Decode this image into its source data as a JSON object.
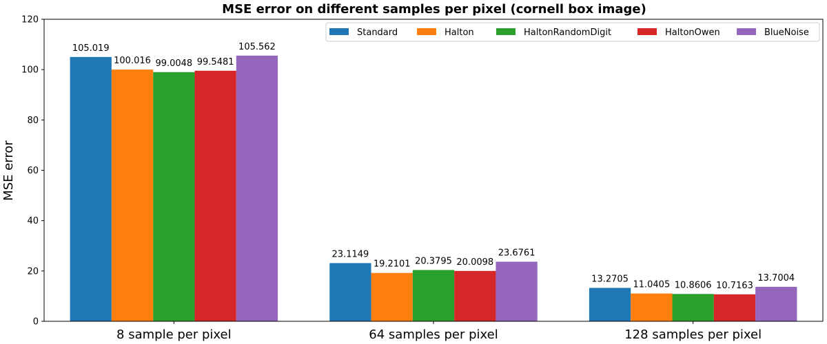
{
  "chart_data": {
    "type": "bar",
    "title": "MSE error on different samples per pixel (cornell box image)",
    "xlabel": "",
    "ylabel": "MSE error",
    "ylim": [
      0,
      120
    ],
    "yticks": [
      0,
      20,
      40,
      60,
      80,
      100,
      120
    ],
    "grid": false,
    "legend_position": "top-right",
    "categories": [
      "8 sample per pixel",
      "64 samples per pixel",
      "128 samples per pixel"
    ],
    "series": [
      {
        "name": "Standard",
        "color": "#1f77b4",
        "values": [
          105.019,
          23.1149,
          13.2705
        ],
        "labels": [
          "105.019",
          "23.1149",
          "13.2705"
        ]
      },
      {
        "name": "Halton",
        "color": "#ff7f0e",
        "values": [
          100.016,
          19.2101,
          11.0405
        ],
        "labels": [
          "100.016",
          "19.2101",
          "11.0405"
        ]
      },
      {
        "name": "HaltonRandomDigit",
        "color": "#2ca02c",
        "values": [
          99.0048,
          20.3795,
          10.8606
        ],
        "labels": [
          "99.0048",
          "20.3795",
          "10.8606"
        ]
      },
      {
        "name": "HaltonOwen",
        "color": "#d62728",
        "values": [
          99.5481,
          20.0098,
          10.7163
        ],
        "labels": [
          "99.5481",
          "20.0098",
          "10.7163"
        ]
      },
      {
        "name": "BlueNoise",
        "color": "#9467bd",
        "values": [
          105.562,
          23.6761,
          13.7004
        ],
        "labels": [
          "105.562",
          "23.6761",
          "13.7004"
        ]
      }
    ]
  }
}
